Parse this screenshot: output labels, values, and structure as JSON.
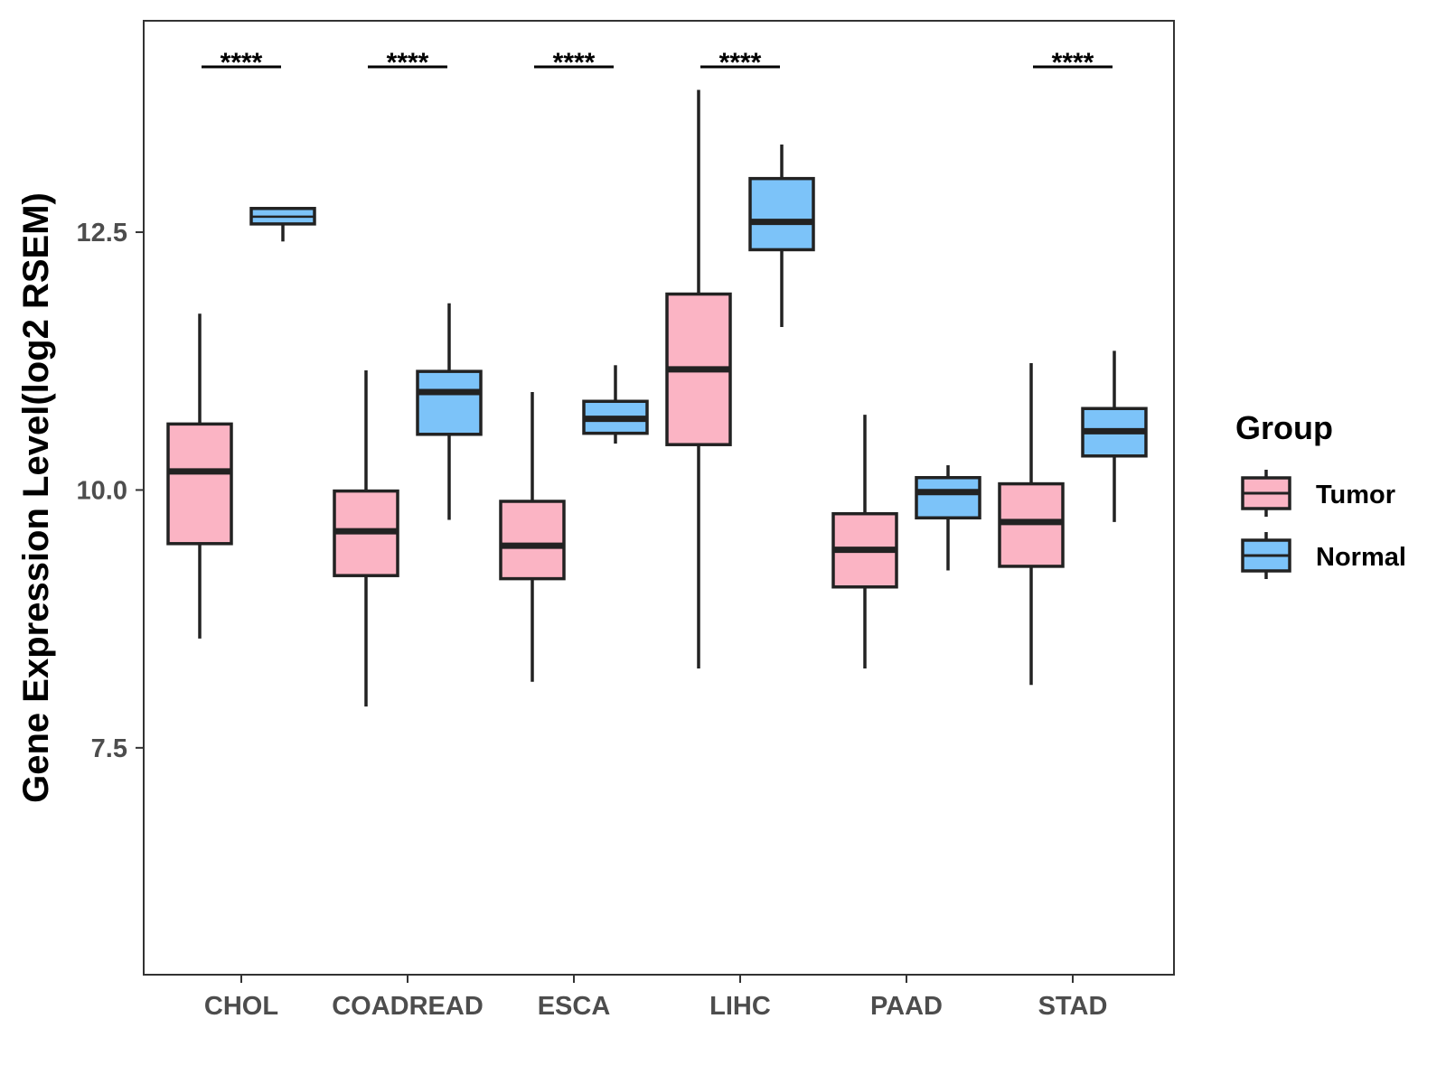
{
  "chart_data": {
    "type": "boxplot",
    "title": "",
    "xlabel": "",
    "ylabel": "Gene Expression Level(log2 RSEM)",
    "ylim": [
      5.3,
      14.55
    ],
    "yticks": [
      {
        "value": 7.5,
        "label": "7.5"
      },
      {
        "value": 10.0,
        "label": "10.0"
      },
      {
        "value": 12.5,
        "label": "12.5"
      }
    ],
    "grid": false,
    "categories": [
      "CHOL",
      "COADREAD",
      "ESCA",
      "LIHC",
      "PAAD",
      "STAD"
    ],
    "significance": [
      "****",
      "****",
      "****",
      "****",
      "",
      "****"
    ],
    "legend": {
      "title": "Group",
      "position": "right",
      "items": [
        {
          "label": "Tumor",
          "color": "#FBB4C4"
        },
        {
          "label": "Normal",
          "color": "#7CC3F9"
        }
      ]
    },
    "series": [
      {
        "name": "Tumor",
        "color": "#FBB4C4",
        "boxes": [
          {
            "min": 8.56,
            "q1": 9.48,
            "median": 10.18,
            "q3": 10.64,
            "max": 11.71
          },
          {
            "min": 7.9,
            "q1": 9.17,
            "median": 9.6,
            "q3": 9.99,
            "max": 11.16
          },
          {
            "min": 8.14,
            "q1": 9.14,
            "median": 9.46,
            "q3": 9.89,
            "max": 10.95
          },
          {
            "min": 8.27,
            "q1": 10.44,
            "median": 11.17,
            "q3": 11.9,
            "max": 13.88
          },
          {
            "min": 8.27,
            "q1": 9.06,
            "median": 9.42,
            "q3": 9.77,
            "max": 10.73
          },
          {
            "min": 8.11,
            "q1": 9.26,
            "median": 9.69,
            "q3": 10.06,
            "max": 11.23
          }
        ]
      },
      {
        "name": "Normal",
        "color": "#7CC3F9",
        "boxes": [
          {
            "min": 12.41,
            "q1": 12.58,
            "median": 12.65,
            "q3": 12.73,
            "max": 12.73
          },
          {
            "min": 9.71,
            "q1": 10.54,
            "median": 10.95,
            "q3": 11.15,
            "max": 11.81
          },
          {
            "min": 10.45,
            "q1": 10.55,
            "median": 10.69,
            "q3": 10.86,
            "max": 11.21
          },
          {
            "min": 11.58,
            "q1": 12.33,
            "median": 12.6,
            "q3": 13.02,
            "max": 13.35
          },
          {
            "min": 9.22,
            "q1": 9.73,
            "median": 9.98,
            "q3": 10.12,
            "max": 10.24
          },
          {
            "min": 9.69,
            "q1": 10.33,
            "median": 10.57,
            "q3": 10.79,
            "max": 11.35
          }
        ]
      }
    ]
  }
}
